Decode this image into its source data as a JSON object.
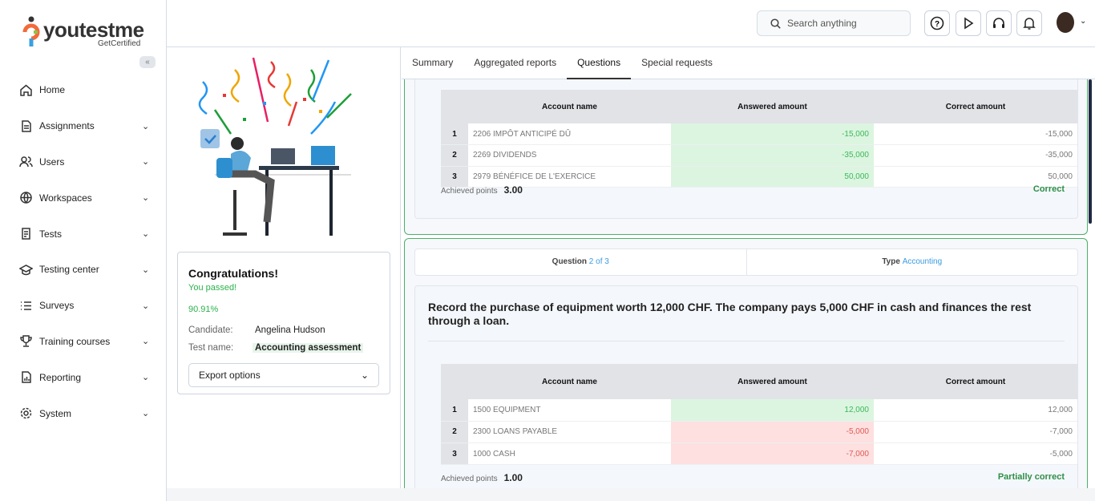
{
  "brand": {
    "name": "youtestme",
    "tagline": "GetCertified"
  },
  "sidebar": {
    "collapse_icon": "double-chevron-left",
    "items": [
      {
        "label": "Home",
        "icon": "home-icon",
        "expandable": false
      },
      {
        "label": "Assignments",
        "icon": "document-icon",
        "expandable": true
      },
      {
        "label": "Users",
        "icon": "users-icon",
        "expandable": true
      },
      {
        "label": "Workspaces",
        "icon": "globe-icon",
        "expandable": true
      },
      {
        "label": "Tests",
        "icon": "test-icon",
        "expandable": true
      },
      {
        "label": "Testing center",
        "icon": "graduation-cap-icon",
        "expandable": true
      },
      {
        "label": "Surveys",
        "icon": "list-icon",
        "expandable": true
      },
      {
        "label": "Training courses",
        "icon": "trophy-icon",
        "expandable": true
      },
      {
        "label": "Reporting",
        "icon": "report-icon",
        "expandable": true
      },
      {
        "label": "System",
        "icon": "gear-icon",
        "expandable": true
      }
    ]
  },
  "header": {
    "search_placeholder": "Search anything",
    "buttons": [
      "help-icon",
      "play-icon",
      "headset-icon",
      "bell-icon"
    ]
  },
  "result": {
    "title": "Congratulations!",
    "status": "You passed!",
    "score": "90.91%",
    "candidate_label": "Candidate:",
    "candidate": "Angelina Hudson",
    "test_label": "Test name:",
    "test_name": "Accounting assessment",
    "export_label": "Export options"
  },
  "tabs": [
    {
      "label": "Summary"
    },
    {
      "label": "Aggregated reports"
    },
    {
      "label": "Questions",
      "active": true
    },
    {
      "label": "Special requests"
    }
  ],
  "table_headers": [
    "Account name",
    "Answered amount",
    "Correct amount"
  ],
  "questions": [
    {
      "rows": [
        {
          "n": "1",
          "account": "2206 IMPÔT ANTICIPÉ DÛ",
          "answered": "-15,000",
          "correct": "-15,000",
          "ok": true
        },
        {
          "n": "2",
          "account": "2269 DIVIDENDS",
          "answered": "-35,000",
          "correct": "-35,000",
          "ok": true
        },
        {
          "n": "3",
          "account": "2979 BÉNÉFICE DE L'EXERCICE",
          "answered": "50,000",
          "correct": "50,000",
          "ok": true
        }
      ],
      "points_label": "Achieved points",
      "points": "3.00",
      "status": "Correct"
    },
    {
      "question_label": "Question",
      "number": "2 of 3",
      "type_label": "Type",
      "type": "Accounting",
      "text": "Record the purchase of equipment worth 12,000 CHF. The company pays 5,000 CHF in cash and finances the rest through a loan.",
      "rows": [
        {
          "n": "1",
          "account": "1500 EQUIPMENT",
          "answered": "12,000",
          "correct": "12,000",
          "ok": true
        },
        {
          "n": "2",
          "account": "2300 LOANS PAYABLE",
          "answered": "-5,000",
          "correct": "-7,000",
          "ok": false
        },
        {
          "n": "3",
          "account": "1000 CASH",
          "answered": "-7,000",
          "correct": "-5,000",
          "ok": false
        }
      ],
      "points_label": "Achieved points",
      "points": "1.00",
      "status": "Partially correct"
    }
  ]
}
